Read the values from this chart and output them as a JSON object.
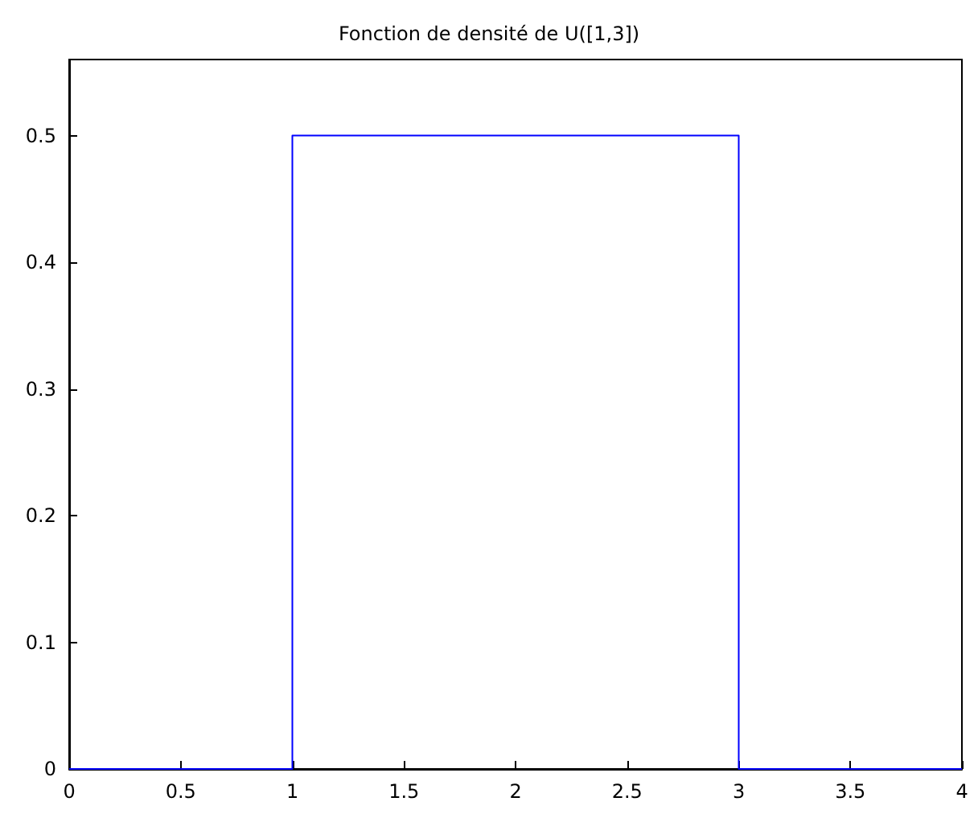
{
  "chart_data": {
    "type": "line",
    "title": "Fonction de densité de U([1,3])",
    "x": [
      0,
      1,
      1,
      1,
      3,
      3,
      3,
      4
    ],
    "series": [
      {
        "color": "#0000ff",
        "values": [
          0,
          0,
          0.25,
          0.5,
          0.5,
          0.25,
          0,
          0
        ]
      }
    ],
    "xlim": [
      0,
      4
    ],
    "xticks": [
      0,
      0.5,
      1,
      1.5,
      2,
      2.5,
      3,
      3.5,
      4
    ],
    "ylim": [
      0,
      0.56
    ],
    "yticks": [
      0,
      0.1,
      0.2,
      0.3,
      0.4,
      0.5
    ],
    "grid": false,
    "marker": "none",
    "line_style": "solid"
  }
}
